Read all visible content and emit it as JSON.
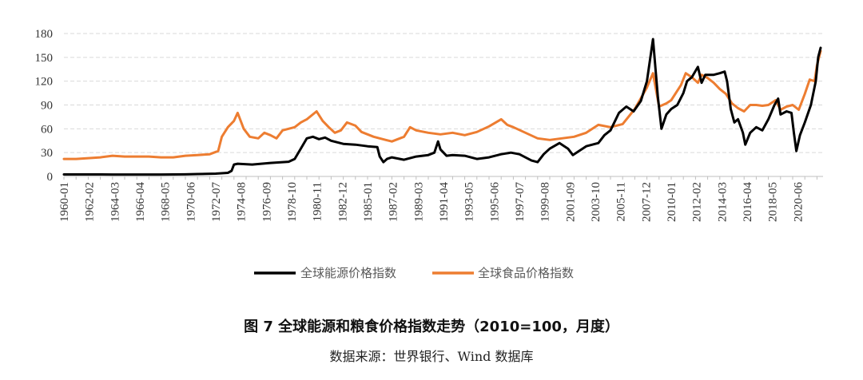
{
  "figure": {
    "caption": "图 7  全球能源和粮食价格指数走势（2010=100，月度）",
    "source": "数据来源：世界银行、Wind 数据库"
  },
  "chart_data": {
    "type": "line",
    "title": "全球能源和粮食价格指数走势（2010=100，月度）",
    "xlabel": "",
    "ylabel": "",
    "ylim": [
      0,
      180
    ],
    "yticks": [
      0,
      30,
      60,
      90,
      120,
      150,
      180
    ],
    "xlim": [
      1960.0,
      2022.5
    ],
    "xticks": [
      "1960-01",
      "1962-02",
      "1964-03",
      "1966-04",
      "1968-05",
      "1970-06",
      "1972-07",
      "1974-08",
      "1976-09",
      "1978-10",
      "1980-11",
      "1982-12",
      "1985-01",
      "1987-02",
      "1989-03",
      "1991-04",
      "1993-05",
      "1995-06",
      "1997-07",
      "1999-08",
      "2001-09",
      "2003-10",
      "2005-11",
      "2007-12",
      "2010-01",
      "2012-02",
      "2014-03",
      "2016-04",
      "2018-05",
      "2020-06"
    ],
    "grid": "horizontal-dashed",
    "legend_position": "bottom",
    "colors": {
      "energy": "#000000",
      "food": "#ED7D31",
      "grid": "#D9D9D9",
      "axis": "#BFBFBF"
    },
    "series": [
      {
        "name": "全球能源价格指数",
        "key": "energy",
        "points": [
          [
            1960.0,
            2.5
          ],
          [
            1962.0,
            2.5
          ],
          [
            1964.0,
            2.4
          ],
          [
            1966.0,
            2.4
          ],
          [
            1968.0,
            2.4
          ],
          [
            1970.0,
            2.6
          ],
          [
            1971.0,
            3
          ],
          [
            1972.5,
            3.5
          ],
          [
            1973.5,
            4.5
          ],
          [
            1973.8,
            7
          ],
          [
            1974.0,
            15
          ],
          [
            1974.3,
            16
          ],
          [
            1975.5,
            15
          ],
          [
            1977.0,
            17
          ],
          [
            1978.5,
            18.5
          ],
          [
            1979.0,
            22
          ],
          [
            1979.5,
            35
          ],
          [
            1980.0,
            48
          ],
          [
            1980.5,
            50
          ],
          [
            1981.0,
            47
          ],
          [
            1981.5,
            49
          ],
          [
            1982.0,
            45
          ],
          [
            1983.0,
            41
          ],
          [
            1984.0,
            40
          ],
          [
            1985.0,
            38
          ],
          [
            1985.8,
            37
          ],
          [
            1986.0,
            25
          ],
          [
            1986.3,
            18
          ],
          [
            1986.6,
            22
          ],
          [
            1987.0,
            24
          ],
          [
            1988.0,
            21
          ],
          [
            1989.0,
            25
          ],
          [
            1990.0,
            27
          ],
          [
            1990.5,
            30
          ],
          [
            1990.8,
            44
          ],
          [
            1991.0,
            34
          ],
          [
            1991.5,
            26
          ],
          [
            1992.0,
            27
          ],
          [
            1993.0,
            26
          ],
          [
            1994.0,
            22
          ],
          [
            1995.0,
            24
          ],
          [
            1996.0,
            28
          ],
          [
            1996.8,
            30
          ],
          [
            1997.5,
            28
          ],
          [
            1998.5,
            20
          ],
          [
            1999.0,
            18
          ],
          [
            1999.5,
            28
          ],
          [
            2000.0,
            35
          ],
          [
            2000.8,
            42
          ],
          [
            2001.5,
            35
          ],
          [
            2001.9,
            27
          ],
          [
            2002.5,
            33
          ],
          [
            2003.0,
            38
          ],
          [
            2004.0,
            42
          ],
          [
            2004.5,
            52
          ],
          [
            2005.0,
            58
          ],
          [
            2005.7,
            80
          ],
          [
            2006.3,
            88
          ],
          [
            2006.9,
            82
          ],
          [
            2007.5,
            95
          ],
          [
            2008.0,
            120
          ],
          [
            2008.5,
            173
          ],
          [
            2008.9,
            100
          ],
          [
            2009.2,
            60
          ],
          [
            2009.6,
            78
          ],
          [
            2010.0,
            85
          ],
          [
            2010.5,
            90
          ],
          [
            2011.0,
            105
          ],
          [
            2011.3,
            120
          ],
          [
            2011.7,
            125
          ],
          [
            2012.2,
            138
          ],
          [
            2012.5,
            118
          ],
          [
            2012.8,
            128
          ],
          [
            2013.5,
            128
          ],
          [
            2014.0,
            130
          ],
          [
            2014.4,
            132
          ],
          [
            2014.6,
            120
          ],
          [
            2014.9,
            85
          ],
          [
            2015.2,
            68
          ],
          [
            2015.5,
            72
          ],
          [
            2015.9,
            55
          ],
          [
            2016.1,
            40
          ],
          [
            2016.5,
            55
          ],
          [
            2017.0,
            62
          ],
          [
            2017.5,
            58
          ],
          [
            2018.0,
            72
          ],
          [
            2018.5,
            90
          ],
          [
            2018.8,
            98
          ],
          [
            2019.0,
            78
          ],
          [
            2019.5,
            82
          ],
          [
            2019.9,
            80
          ],
          [
            2020.1,
            55
          ],
          [
            2020.3,
            32
          ],
          [
            2020.6,
            52
          ],
          [
            2021.0,
            68
          ],
          [
            2021.5,
            90
          ],
          [
            2021.9,
            120
          ],
          [
            2022.1,
            150
          ],
          [
            2022.3,
            162
          ]
        ]
      },
      {
        "name": "全球食品价格指数",
        "key": "food",
        "points": [
          [
            1960.0,
            22
          ],
          [
            1961.0,
            22
          ],
          [
            1962.0,
            23
          ],
          [
            1963.0,
            24
          ],
          [
            1964.0,
            26
          ],
          [
            1965.0,
            25
          ],
          [
            1966.0,
            25
          ],
          [
            1967.0,
            25
          ],
          [
            1968.0,
            24
          ],
          [
            1969.0,
            24
          ],
          [
            1970.0,
            26
          ],
          [
            1971.0,
            27
          ],
          [
            1972.0,
            28
          ],
          [
            1972.7,
            32
          ],
          [
            1973.0,
            50
          ],
          [
            1973.5,
            62
          ],
          [
            1974.0,
            70
          ],
          [
            1974.3,
            80
          ],
          [
            1974.8,
            60
          ],
          [
            1975.3,
            50
          ],
          [
            1976.0,
            48
          ],
          [
            1976.5,
            55
          ],
          [
            1977.0,
            52
          ],
          [
            1977.5,
            48
          ],
          [
            1978.0,
            58
          ],
          [
            1978.5,
            60
          ],
          [
            1979.0,
            62
          ],
          [
            1979.5,
            68
          ],
          [
            1980.0,
            72
          ],
          [
            1980.8,
            82
          ],
          [
            1981.3,
            70
          ],
          [
            1981.8,
            62
          ],
          [
            1982.3,
            55
          ],
          [
            1982.8,
            58
          ],
          [
            1983.3,
            68
          ],
          [
            1984.0,
            64
          ],
          [
            1984.5,
            56
          ],
          [
            1985.5,
            50
          ],
          [
            1986.5,
            46
          ],
          [
            1987.0,
            44
          ],
          [
            1988.0,
            50
          ],
          [
            1988.5,
            62
          ],
          [
            1989.0,
            58
          ],
          [
            1990.0,
            55
          ],
          [
            1991.0,
            53
          ],
          [
            1992.0,
            55
          ],
          [
            1993.0,
            52
          ],
          [
            1994.0,
            56
          ],
          [
            1995.0,
            63
          ],
          [
            1996.0,
            72
          ],
          [
            1996.5,
            65
          ],
          [
            1997.0,
            62
          ],
          [
            1998.0,
            55
          ],
          [
            1999.0,
            48
          ],
          [
            2000.0,
            46
          ],
          [
            2001.0,
            48
          ],
          [
            2002.0,
            50
          ],
          [
            2003.0,
            55
          ],
          [
            2004.0,
            65
          ],
          [
            2005.0,
            62
          ],
          [
            2006.0,
            66
          ],
          [
            2007.0,
            85
          ],
          [
            2008.0,
            112
          ],
          [
            2008.5,
            130
          ],
          [
            2009.0,
            88
          ],
          [
            2009.6,
            92
          ],
          [
            2010.0,
            96
          ],
          [
            2010.8,
            115
          ],
          [
            2011.2,
            130
          ],
          [
            2011.7,
            125
          ],
          [
            2012.2,
            118
          ],
          [
            2012.5,
            128
          ],
          [
            2013.0,
            124
          ],
          [
            2013.5,
            118
          ],
          [
            2014.0,
            110
          ],
          [
            2014.5,
            104
          ],
          [
            2015.0,
            92
          ],
          [
            2015.5,
            86
          ],
          [
            2016.0,
            82
          ],
          [
            2016.5,
            90
          ],
          [
            2017.0,
            90
          ],
          [
            2017.5,
            89
          ],
          [
            2018.0,
            90
          ],
          [
            2018.6,
            96
          ],
          [
            2019.0,
            84
          ],
          [
            2019.5,
            88
          ],
          [
            2020.0,
            90
          ],
          [
            2020.5,
            84
          ],
          [
            2021.0,
            104
          ],
          [
            2021.4,
            122
          ],
          [
            2021.8,
            120
          ],
          [
            2022.0,
            140
          ],
          [
            2022.3,
            158
          ]
        ]
      }
    ]
  }
}
